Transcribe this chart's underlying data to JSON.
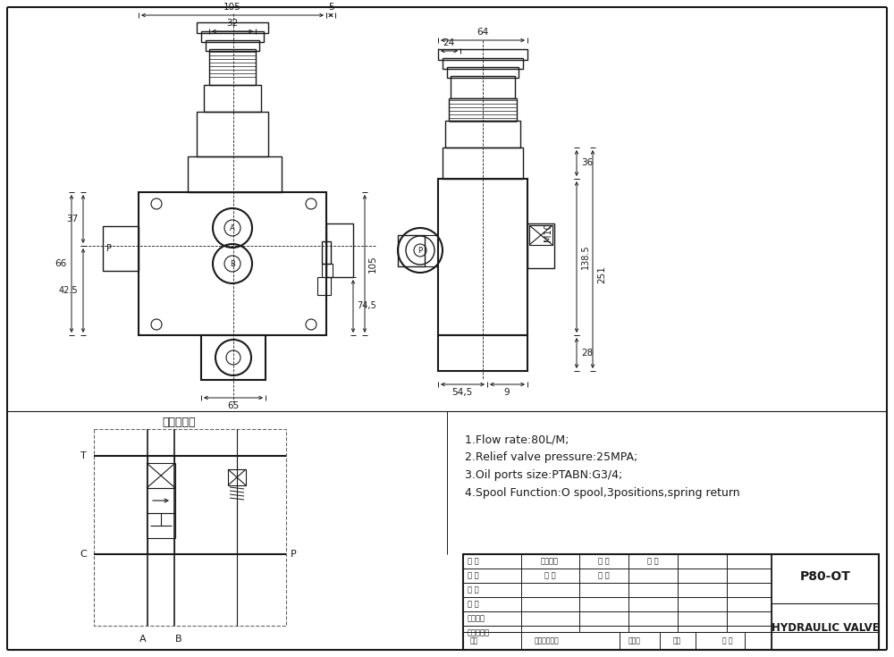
{
  "bg_color": "#ffffff",
  "lc": "#1a1a1a",
  "specs": [
    "1.Flow rate:80L/M;",
    "2.Relief valve pressure:25MPA;",
    "3.Oil ports size:PTABN:G3/4;",
    "4.Spool Function:O spool,3positions,spring return"
  ],
  "hydraulic_title": "液压原理图"
}
